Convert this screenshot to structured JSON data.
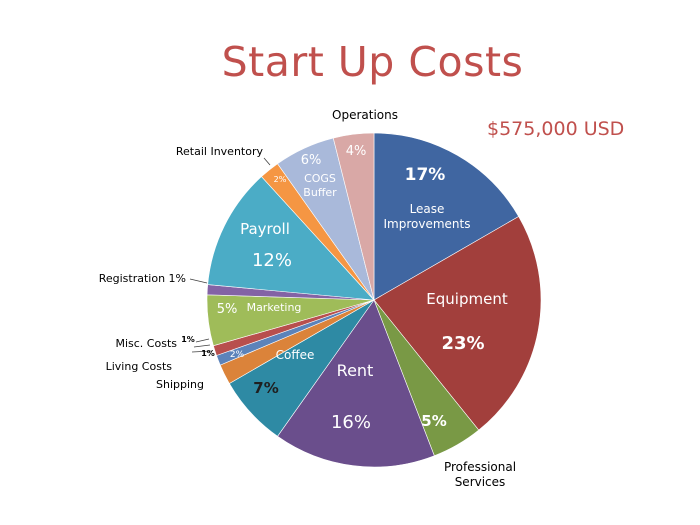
{
  "chart_data": {
    "type": "pie",
    "title": "Start Up Costs",
    "subtitle": "$575,000 USD",
    "slices": [
      {
        "name": "Lease Improvements",
        "pct_label": "17%",
        "value": 17,
        "color": "#4066A1"
      },
      {
        "name": "Equipment",
        "pct_label": "23%",
        "value": 23,
        "color": "#A23F3C"
      },
      {
        "name": "Professional Services",
        "pct_label": "5%",
        "value": 5,
        "color": "#799945"
      },
      {
        "name": "Rent",
        "pct_label": "16%",
        "value": 16,
        "color": "#6A4E8C"
      },
      {
        "name": "Coffee",
        "pct_label": "7%",
        "value": 7,
        "color": "#2E8AA4"
      },
      {
        "name": "Shipping",
        "pct_label": "2%",
        "value": 2,
        "color": "#DB833A"
      },
      {
        "name": "Living Costs",
        "pct_label": "1%",
        "value": 1,
        "color": "#5C83BA"
      },
      {
        "name": "Misc. Costs",
        "pct_label": "1%",
        "value": 1,
        "color": "#B84F4D"
      },
      {
        "name": "Marketing",
        "pct_label": "5%",
        "value": 5,
        "color": "#9FBC59"
      },
      {
        "name": "Registration",
        "pct_label": "1%",
        "value": 1,
        "color": "#8363A5"
      },
      {
        "name": "Payroll",
        "pct_label": "12%",
        "value": 12,
        "color": "#4BACC6"
      },
      {
        "name": "Retail Inventory",
        "pct_label": "2%",
        "value": 2,
        "color": "#F59643"
      },
      {
        "name": "COGS Buffer",
        "pct_label": "6%",
        "value": 6,
        "color": "#A9B9DA"
      },
      {
        "name": "Operations",
        "pct_label": "4%",
        "value": 4,
        "color": "#D9A8A6"
      }
    ],
    "labels": {
      "lease_name_1": "Lease",
      "lease_name_2": "Improvements",
      "lease_pct": "17%",
      "equipment_name": "Equipment",
      "equipment_pct": "23%",
      "professional_pct": "5%",
      "professional_name_1": "Professional",
      "professional_name_2": "Services",
      "rent_name": "Rent",
      "rent_pct": "16%",
      "coffee_name": "Coffee",
      "coffee_pct": "7%",
      "shipping_pct": "2%",
      "shipping_name": "Shipping",
      "living_pct": "1%",
      "living_name": "Living Costs",
      "misc_pct": "1%",
      "misc_name": "Misc. Costs",
      "marketing_pct": "5%",
      "marketing_name": "Marketing",
      "registration_name": "Registration 1%",
      "payroll_name": "Payroll",
      "payroll_pct": "12%",
      "retail_pct": "2%",
      "retail_name": "Retail Inventory",
      "cogs_pct": "6%",
      "cogs_name_1": "COGS",
      "cogs_name_2": "Buffer",
      "operations_pct": "4%",
      "operations_name": "Operations"
    }
  }
}
